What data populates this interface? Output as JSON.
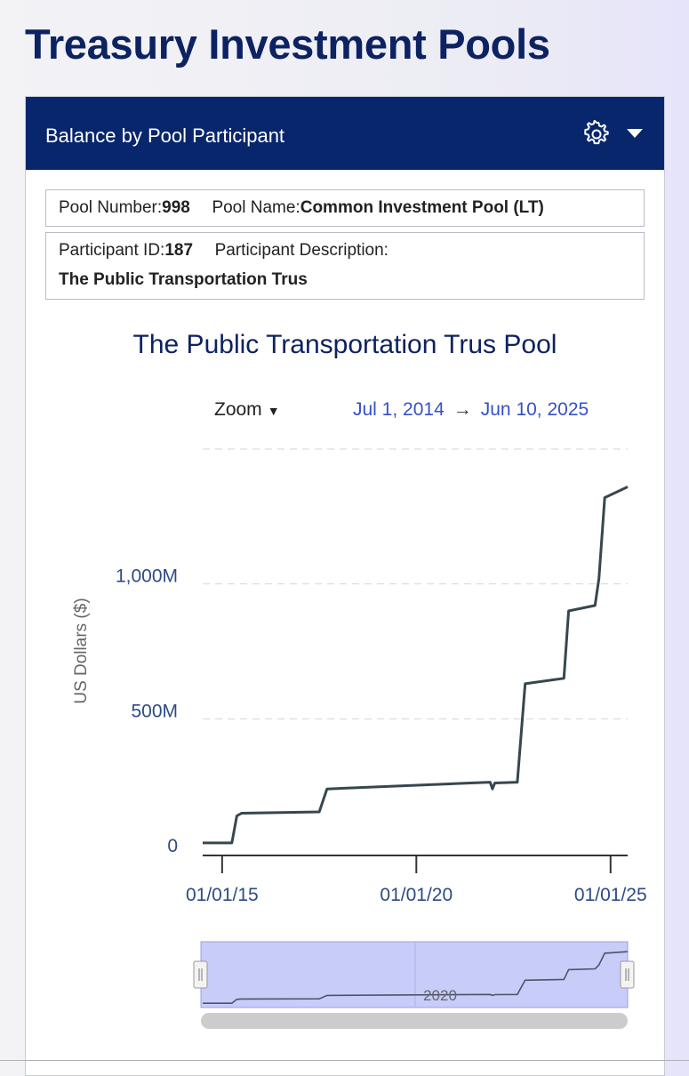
{
  "page": {
    "title": "Treasury Investment Pools"
  },
  "panel": {
    "title": "Balance by Pool Participant",
    "settings_icon": "gear-icon",
    "menu_icon": "caret-down-icon",
    "header_color": "#08266c"
  },
  "pool": {
    "number_label": "Pool Number:",
    "number": "998",
    "name_label": "Pool Name:",
    "name": "Common Investment Pool (LT)"
  },
  "participant": {
    "id_label": "Participant ID:",
    "id": "187",
    "description_label": "Participant Description:",
    "description": "The Public Transportation Trus"
  },
  "zoom": {
    "label": "Zoom",
    "start": "Jul 1, 2014",
    "arrow": "→",
    "end": "Jun 10, 2025"
  },
  "navigator": {
    "label": "2020"
  },
  "chart_data": {
    "type": "line",
    "title": "The Public Transportation Trus Pool",
    "xlabel": "",
    "ylabel": "US Dollars ($)",
    "x_ticks": [
      "01/01/15",
      "01/01/20",
      "01/01/25"
    ],
    "y_ticks": [
      "0",
      "500M",
      "1,000M"
    ],
    "ylim": [
      0,
      1500
    ],
    "xlim": [
      2014.5,
      2025.44
    ],
    "grid": "horizontal dashed",
    "line_color": "#37474f",
    "series": [
      {
        "x": [
          2014.5,
          2015.25,
          2015.38,
          2015.5,
          2017.5,
          2017.7,
          2021.9,
          2021.96,
          2022.02,
          2022.6,
          2022.8,
          2023.8,
          2023.92,
          2024.6,
          2024.7,
          2024.85,
          2025.44
        ],
        "y": [
          40,
          40,
          140,
          150,
          155,
          240,
          265,
          240,
          262,
          265,
          630,
          650,
          900,
          920,
          1020,
          1320,
          1360
        ]
      }
    ]
  }
}
